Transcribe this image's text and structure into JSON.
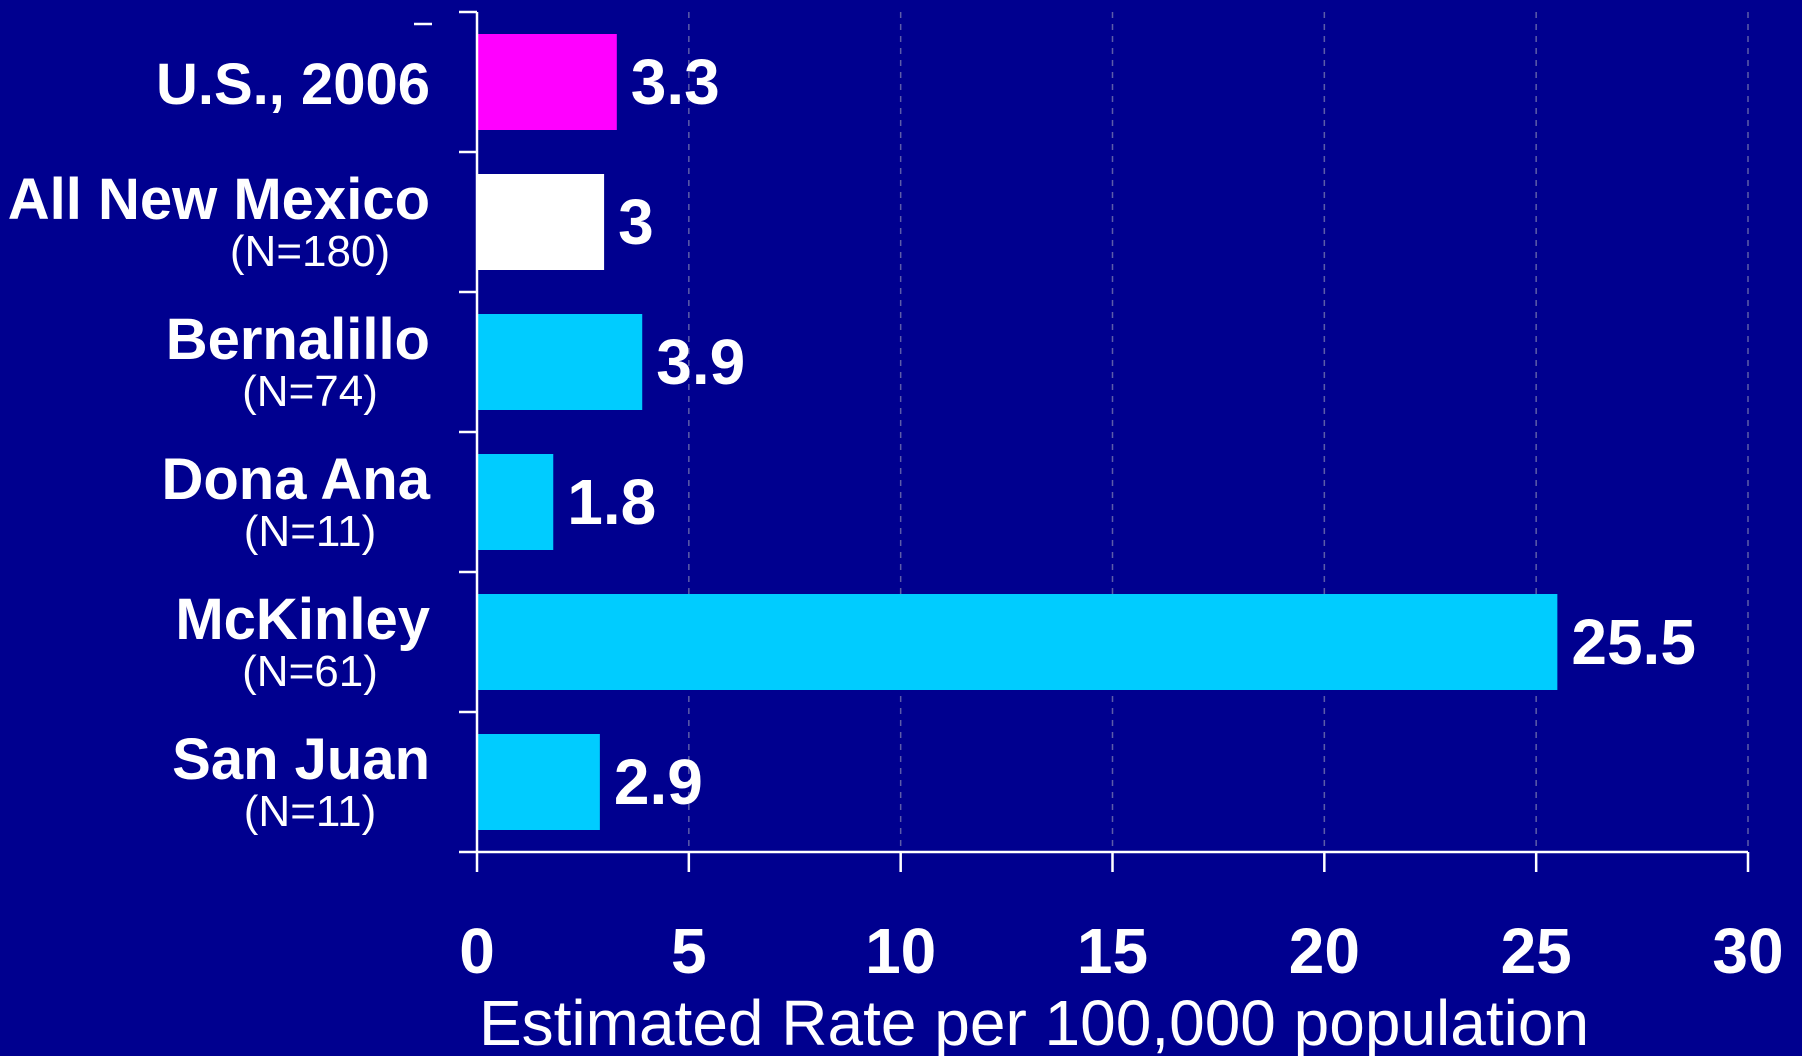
{
  "chart_data": {
    "type": "bar",
    "orientation": "horizontal",
    "categories": [
      "U.S., 2006",
      "All New Mexico",
      "Bernalillo",
      "Dona Ana",
      "McKinley",
      "San Juan"
    ],
    "category_sublabels": [
      "",
      "(N=180)",
      "(N=74)",
      "(N=11)",
      "(N=61)",
      "(N=11)"
    ],
    "values": [
      3.3,
      3,
      3.9,
      1.8,
      25.5,
      2.9
    ],
    "value_labels": [
      "3.3",
      "3",
      "3.9",
      "1.8",
      "25.5",
      "2.9"
    ],
    "bar_colors": [
      "#ff00ff",
      "#ffffff",
      "#00ccff",
      "#00ccff",
      "#00ccff",
      "#00ccff"
    ],
    "xlabel": "Estimated Rate per 100,000 population",
    "xlim": [
      0,
      30
    ],
    "xticks": [
      0,
      5,
      10,
      15,
      20,
      25,
      30
    ],
    "grid": "vertical dashed",
    "background_color": "#00008f",
    "axis_color": "#ffffff",
    "gridline_color": "#5c5ca8"
  }
}
